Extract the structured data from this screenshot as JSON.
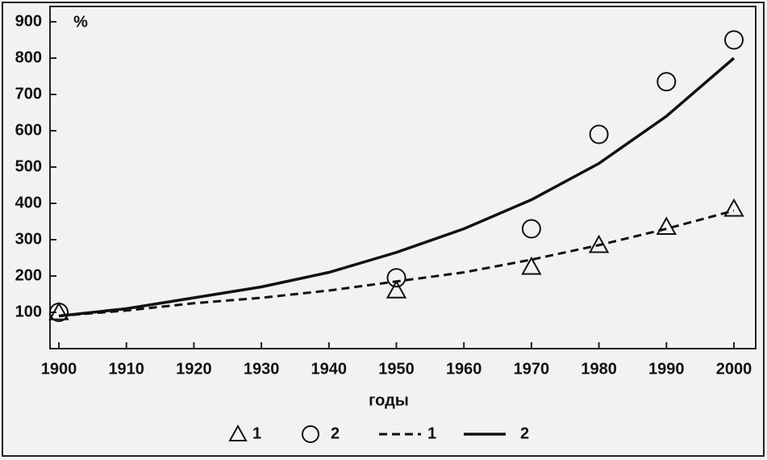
{
  "chart_data": {
    "type": "line",
    "y_label": "%",
    "x_label": "годы",
    "xlim": [
      1900,
      2000
    ],
    "xticks": [
      1900,
      1910,
      1920,
      1930,
      1940,
      1950,
      1960,
      1970,
      1980,
      1990,
      2000
    ],
    "ylim": [
      0,
      900
    ],
    "yticks": [
      100,
      200,
      300,
      400,
      500,
      600,
      700,
      800,
      900
    ],
    "series": [
      {
        "name": "1",
        "style": "triangle",
        "color": "#111111",
        "x": [
          1900,
          1950,
          1970,
          1980,
          1990,
          2000
        ],
        "values": [
          100,
          160,
          225,
          285,
          335,
          385
        ]
      },
      {
        "name": "2",
        "style": "circle",
        "color": "#111111",
        "x": [
          1900,
          1950,
          1970,
          1980,
          1990,
          2000
        ],
        "values": [
          100,
          195,
          330,
          590,
          735,
          850
        ]
      },
      {
        "name": "1",
        "style": "dashed",
        "color": "#111111",
        "x": [
          1900,
          1910,
          1920,
          1930,
          1940,
          1950,
          1960,
          1970,
          1980,
          1990,
          2000
        ],
        "values": [
          90,
          105,
          125,
          140,
          160,
          185,
          210,
          245,
          285,
          330,
          380
        ]
      },
      {
        "name": "2",
        "style": "solid",
        "color": "#111111",
        "x": [
          1900,
          1910,
          1920,
          1930,
          1940,
          1950,
          1960,
          1970,
          1980,
          1990,
          2000
        ],
        "values": [
          90,
          110,
          140,
          170,
          210,
          265,
          330,
          410,
          510,
          640,
          800
        ]
      }
    ]
  }
}
